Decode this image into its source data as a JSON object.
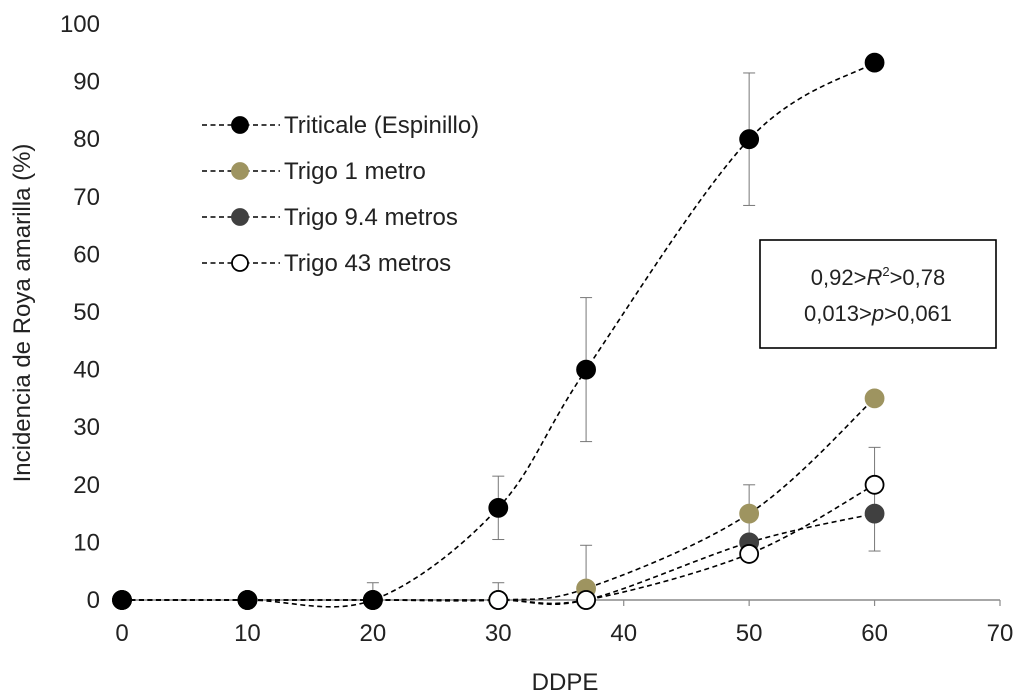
{
  "chart_data": {
    "type": "line",
    "title": "",
    "xlabel": "DDPE",
    "ylabel": "Incidencia de Roya amarilla (%)",
    "xlim": [
      0,
      70
    ],
    "ylim": [
      0,
      100
    ],
    "xticks": [
      0,
      10,
      20,
      30,
      40,
      50,
      60,
      70
    ],
    "yticks": [
      0,
      10,
      20,
      30,
      40,
      50,
      60,
      70,
      80,
      90,
      100
    ],
    "grid": false,
    "legend_position": "top-left",
    "line_style": "dashed",
    "series": [
      {
        "name": "Triticale (Espinillo)",
        "marker_fill": "#000000",
        "marker_stroke": "#000000",
        "points": [
          {
            "x": 0,
            "y": 0
          },
          {
            "x": 10,
            "y": 0
          },
          {
            "x": 20,
            "y": 0
          },
          {
            "x": 30,
            "y": 16,
            "err_low": 10.5,
            "err_high": 21.5
          },
          {
            "x": 37,
            "y": 40,
            "err_low": 27.5,
            "err_high": 52.5
          },
          {
            "x": 50,
            "y": 80,
            "err_low": 68.5,
            "err_high": 91.5
          },
          {
            "x": 60,
            "y": 93.3
          }
        ]
      },
      {
        "name": "Trigo 1 metro",
        "marker_fill": "#9e9460",
        "marker_stroke": "#9e9460",
        "points": [
          {
            "x": 0,
            "y": 0
          },
          {
            "x": 10,
            "y": 0
          },
          {
            "x": 20,
            "y": 0
          },
          {
            "x": 30,
            "y": 0
          },
          {
            "x": 37,
            "y": 2,
            "err_low": 0,
            "err_high": 9.5
          },
          {
            "x": 50,
            "y": 15,
            "err_low": 10,
            "err_high": 20
          },
          {
            "x": 60,
            "y": 35
          }
        ]
      },
      {
        "name": "Trigo 9.4 metros",
        "marker_fill": "#404040",
        "marker_stroke": "#404040",
        "points": [
          {
            "x": 0,
            "y": 0
          },
          {
            "x": 10,
            "y": 0
          },
          {
            "x": 20,
            "y": 0
          },
          {
            "x": 30,
            "y": 0
          },
          {
            "x": 37,
            "y": 0
          },
          {
            "x": 50,
            "y": 10
          },
          {
            "x": 60,
            "y": 15
          }
        ]
      },
      {
        "name": "Trigo 43 metros",
        "marker_fill": "#ffffff",
        "marker_stroke": "#000000",
        "points": [
          {
            "x": 0,
            "y": 0
          },
          {
            "x": 10,
            "y": 0
          },
          {
            "x": 20,
            "y": 0,
            "err_low": 0,
            "err_high": 3
          },
          {
            "x": 30,
            "y": 0,
            "err_low": 0,
            "err_high": 3
          },
          {
            "x": 37,
            "y": 0
          },
          {
            "x": 50,
            "y": 8
          },
          {
            "x": 60,
            "y": 20,
            "err_low": 8.5,
            "err_high": 26.5
          }
        ]
      }
    ],
    "annotation": {
      "line1_prefix": "0,92>",
      "line1_symbol": "R",
      "line1_sup": "2",
      "line1_suffix": ">0,78",
      "line2_prefix": "0,013>",
      "line2_symbol": "p",
      "line2_suffix": ">0,061"
    }
  }
}
